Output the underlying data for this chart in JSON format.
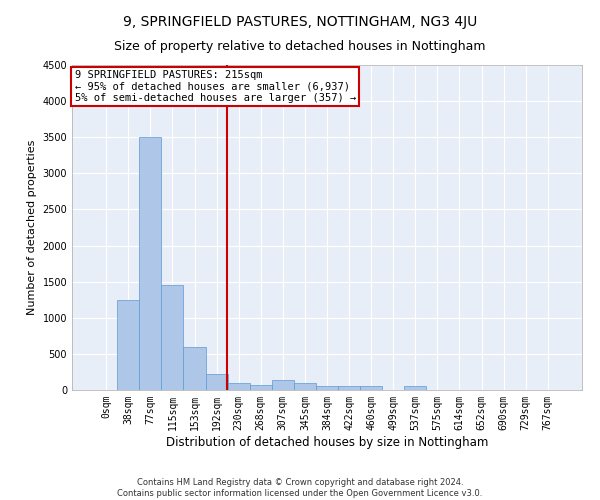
{
  "title": "9, SPRINGFIELD PASTURES, NOTTINGHAM, NG3 4JU",
  "subtitle": "Size of property relative to detached houses in Nottingham",
  "xlabel": "Distribution of detached houses by size in Nottingham",
  "ylabel": "Number of detached properties",
  "footer_line1": "Contains HM Land Registry data © Crown copyright and database right 2024.",
  "footer_line2": "Contains public sector information licensed under the Open Government Licence v3.0.",
  "bar_labels": [
    "0sqm",
    "38sqm",
    "77sqm",
    "115sqm",
    "153sqm",
    "192sqm",
    "230sqm",
    "268sqm",
    "307sqm",
    "345sqm",
    "384sqm",
    "422sqm",
    "460sqm",
    "499sqm",
    "537sqm",
    "575sqm",
    "614sqm",
    "652sqm",
    "690sqm",
    "729sqm",
    "767sqm"
  ],
  "bar_values": [
    5,
    1250,
    3500,
    1450,
    600,
    220,
    100,
    75,
    140,
    100,
    60,
    60,
    50,
    0,
    50,
    0,
    0,
    0,
    0,
    0,
    0
  ],
  "bar_color": "#aec6e8",
  "bar_edgecolor": "#5b9bd5",
  "bar_width": 1.0,
  "red_line_x": 5.46,
  "annotation_line1": "9 SPRINGFIELD PASTURES: 215sqm",
  "annotation_line2": "← 95% of detached houses are smaller (6,937)",
  "annotation_line3": "5% of semi-detached houses are larger (357) →",
  "annotation_box_color": "#ffffff",
  "annotation_box_edgecolor": "#cc0000",
  "ylim": [
    0,
    4500
  ],
  "yticks": [
    0,
    500,
    1000,
    1500,
    2000,
    2500,
    3000,
    3500,
    4000,
    4500
  ],
  "plot_bg_color": "#e8eef7",
  "grid_color": "#ffffff",
  "title_fontsize": 10,
  "subtitle_fontsize": 9,
  "ylabel_fontsize": 8,
  "xlabel_fontsize": 8.5,
  "tick_fontsize": 7,
  "annotation_fontsize": 7.5,
  "footer_fontsize": 6
}
